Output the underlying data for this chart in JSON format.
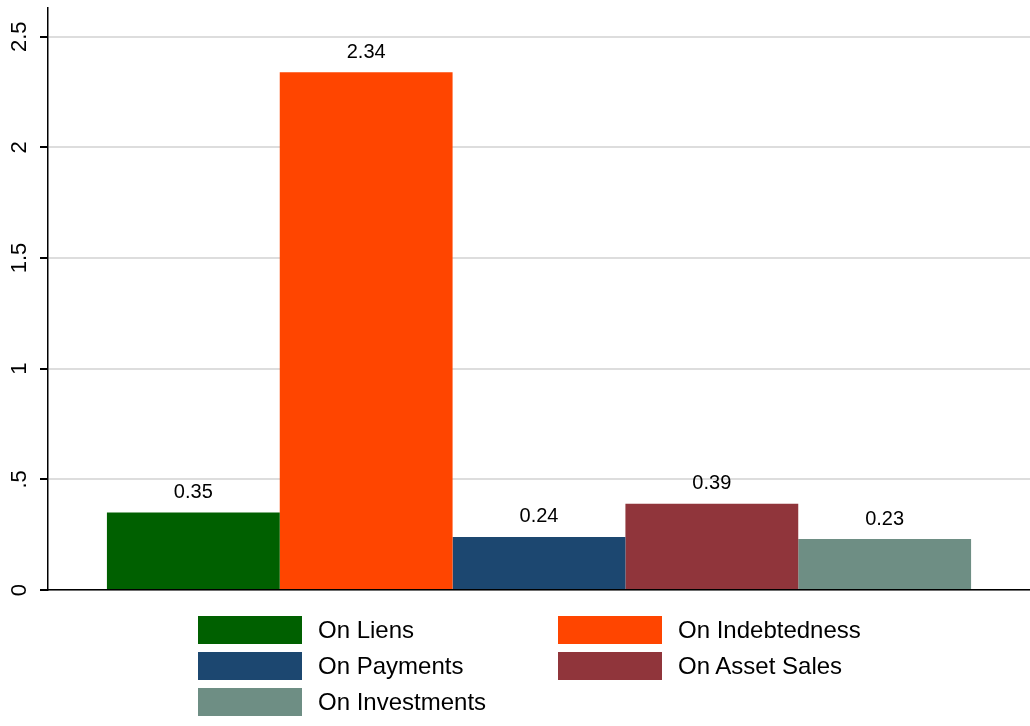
{
  "chart_data": {
    "type": "bar",
    "categories": [
      null
    ],
    "series": [
      {
        "name": "On Liens",
        "color": "#006000",
        "values": [
          0.35
        ]
      },
      {
        "name": "On Indebtedness",
        "color": "#ff4500",
        "values": [
          2.34
        ]
      },
      {
        "name": "On Payments",
        "color": "#1c4770",
        "values": [
          0.24
        ]
      },
      {
        "name": "On Asset Sales",
        "color": "#90353b",
        "values": [
          0.39
        ]
      },
      {
        "name": "On Investments",
        "color": "#6e8e84",
        "values": [
          0.23
        ]
      }
    ],
    "ylim": [
      0,
      2.63
    ],
    "yticks": [
      0,
      {
        "value": 0.5,
        "label": ".5"
      },
      1,
      1.5,
      2,
      2.5
    ],
    "grid": "y",
    "legend": "bottom",
    "data_labels": true
  }
}
